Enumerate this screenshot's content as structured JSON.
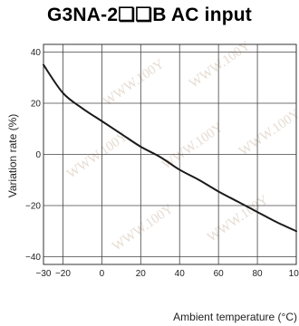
{
  "chart_data": {
    "type": "line",
    "title": "G3NA-2❏❏B AC input",
    "xlabel": "Ambient temperature (°C)",
    "ylabel": "Variation rate (%)",
    "xlim": [
      -30,
      100
    ],
    "ylim": [
      -43,
      43
    ],
    "x_ticks": [
      -30,
      -20,
      0,
      20,
      40,
      60,
      80,
      100
    ],
    "x_tick_labels": [
      "−30",
      "−20",
      "0",
      "20",
      "40",
      "60",
      "80",
      "100"
    ],
    "y_ticks": [
      40,
      20,
      0,
      -20,
      -40
    ],
    "y_tick_labels": [
      "40",
      "20",
      "0",
      "−20",
      "−40"
    ],
    "grid": true,
    "series": [
      {
        "x": [
          -30,
          -20,
          -10,
          0,
          10,
          20,
          30,
          40,
          50,
          60,
          70,
          80,
          90,
          100
        ],
        "y": [
          35,
          24,
          18,
          13,
          8,
          3,
          -1,
          -6,
          -10,
          -14.5,
          -18.5,
          -22.5,
          -26.5,
          -30
        ]
      }
    ],
    "colors": {
      "line": "#1a1a1a",
      "grid": "#444444",
      "watermark": "#e6dcd2"
    },
    "watermark_text": "WWW.100Y"
  }
}
